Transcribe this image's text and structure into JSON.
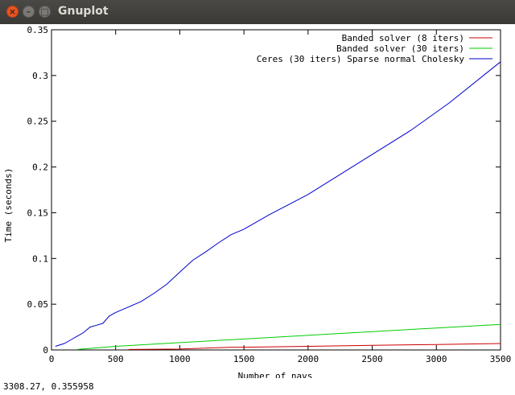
{
  "window": {
    "title": "Gnuplot",
    "close_symbol": "×",
    "minimize_symbol": "–",
    "maximize_symbol": "□"
  },
  "status": {
    "coords": "3308.27,  0.355958"
  },
  "chart_data": {
    "type": "line",
    "xlabel": "Number of navs",
    "ylabel": "Time (seconds)",
    "xlim": [
      0,
      3500
    ],
    "ylim": [
      0,
      0.35
    ],
    "xticks": [
      0,
      500,
      1000,
      1500,
      2000,
      2500,
      3000,
      3500
    ],
    "xtick_labels": [
      "0",
      "500",
      "1000",
      "1500",
      "2000",
      "2500",
      "3000",
      "3500"
    ],
    "yticks": [
      0,
      0.05,
      0.1,
      0.15,
      0.2,
      0.25,
      0.3,
      0.35
    ],
    "ytick_labels": [
      "0",
      "0.05",
      "0.1",
      "0.15",
      "0.2",
      "0.25",
      "0.3",
      "0.35"
    ],
    "grid": false,
    "legend_position": "top-right",
    "series": [
      {
        "name": "Banded solver (8 iters)",
        "color": "#cc0000",
        "x": [
          600,
          1000,
          1400,
          1500,
          2000,
          2500,
          3000,
          3500
        ],
        "y": [
          0.0005,
          0.001,
          0.003,
          0.003,
          0.004,
          0.005,
          0.006,
          0.007
        ]
      },
      {
        "name": "Banded solver (30 iters)",
        "color": "#00cc00",
        "x": [
          200,
          500,
          1000,
          1500,
          2000,
          2500,
          3000,
          3500
        ],
        "y": [
          0.0005,
          0.004,
          0.008,
          0.012,
          0.016,
          0.02,
          0.024,
          0.028
        ]
      },
      {
        "name": "Ceres (30 iters) Sparse normal Cholesky",
        "color": "#0000cc",
        "x": [
          30,
          100,
          150,
          200,
          250,
          300,
          350,
          400,
          450,
          500,
          600,
          700,
          800,
          900,
          1000,
          1100,
          1200,
          1300,
          1400,
          1500,
          1700,
          2000,
          2400,
          2800,
          3100,
          3500
        ],
        "y": [
          0.004,
          0.007,
          0.011,
          0.015,
          0.019,
          0.025,
          0.027,
          0.029,
          0.037,
          0.041,
          0.047,
          0.053,
          0.062,
          0.072,
          0.085,
          0.098,
          0.107,
          0.117,
          0.126,
          0.132,
          0.148,
          0.17,
          0.205,
          0.24,
          0.27,
          0.315
        ]
      }
    ]
  }
}
